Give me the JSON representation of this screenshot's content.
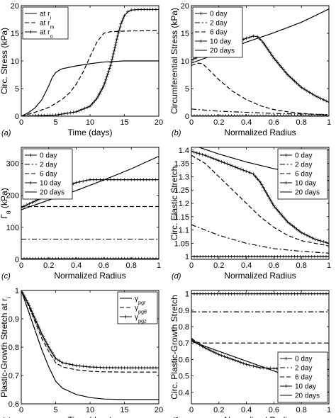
{
  "chart_data": [
    {
      "id": "a",
      "type": "line",
      "panel_label": "(a)",
      "xlabel": "Time (days)",
      "ylabel": "Circ. Stress (kPa)",
      "xlim": [
        0,
        20
      ],
      "ylim": [
        0,
        20
      ],
      "xticks": [
        0,
        5,
        10,
        15,
        20
      ],
      "yticks": [
        0,
        5,
        10,
        15,
        20
      ],
      "legend": "top-left",
      "series": [
        {
          "name": "at r_i",
          "style": "solid",
          "x": [
            0,
            1,
            2,
            3,
            4,
            4.5,
            5,
            5.5,
            6,
            8,
            10,
            12,
            15,
            20
          ],
          "y": [
            0,
            0.6,
            1.5,
            3,
            5.5,
            7,
            7.9,
            8.3,
            8.6,
            9.1,
            9.5,
            9.8,
            10,
            10
          ]
        },
        {
          "name": "at r_m",
          "style": "dashed",
          "x": [
            0,
            2,
            4,
            5,
            6,
            7,
            8,
            9,
            10,
            11,
            12,
            13,
            15,
            20
          ],
          "y": [
            0,
            0.7,
            1.6,
            2.3,
            3.1,
            4.2,
            5.8,
            8,
            10.8,
            13.4,
            15,
            15.3,
            15.4,
            15.5
          ]
        },
        {
          "name": "at r_o",
          "style": "marker-line",
          "x": [
            0,
            5,
            8,
            10,
            11,
            12,
            13,
            13.5,
            14,
            14.5,
            15,
            15.5,
            16,
            17,
            20
          ],
          "y": [
            0,
            0.2,
            0.8,
            1.8,
            3.2,
            5.5,
            9.2,
            11.8,
            14.5,
            16.7,
            18.2,
            18.9,
            19.2,
            19.3,
            19.3
          ]
        }
      ]
    },
    {
      "id": "b",
      "type": "line",
      "panel_label": "(b)",
      "xlabel": "Normalized Radius",
      "ylabel": "Circumferential Stress (kPa)",
      "xlim": [
        0,
        1
      ],
      "ylim": [
        0,
        20
      ],
      "xticks": [
        0,
        0.2,
        0.4,
        0.6,
        0.8,
        1
      ],
      "yticks": [
        0,
        5,
        10,
        15,
        20
      ],
      "legend": "top-left",
      "series": [
        {
          "name": "0 day",
          "style": "marker-line",
          "x": [
            0,
            1
          ],
          "y": [
            0.05,
            0.05
          ]
        },
        {
          "name": "2 day",
          "style": "dashdot",
          "x": [
            0,
            0.2,
            0.4,
            0.6,
            0.8,
            1
          ],
          "y": [
            1.3,
            0.9,
            0.7,
            0.5,
            0.4,
            0.3
          ]
        },
        {
          "name": "6 day",
          "style": "dashed",
          "x": [
            0,
            0.05,
            0.08,
            0.12,
            0.2,
            0.3,
            0.4,
            0.5,
            0.6,
            0.7,
            0.8,
            0.9,
            1
          ],
          "y": [
            9.2,
            9.6,
            9.5,
            8.6,
            6.6,
            4.5,
            3,
            1.9,
            1.2,
            0.8,
            0.5,
            0.35,
            0.2
          ]
        },
        {
          "name": "10 day",
          "style": "marker-line",
          "x": [
            0,
            0.1,
            0.2,
            0.3,
            0.4,
            0.45,
            0.48,
            0.52,
            0.6,
            0.7,
            0.8,
            0.9,
            1
          ],
          "y": [
            10.2,
            11.2,
            12.2,
            13.2,
            14.1,
            14.5,
            14.4,
            13.4,
            10.5,
            7.5,
            5.2,
            3.7,
            2.5
          ]
        },
        {
          "name": "20 days",
          "style": "solid",
          "x": [
            0,
            0.2,
            0.4,
            0.6,
            0.8,
            1
          ],
          "y": [
            9.6,
            11.4,
            13.4,
            15.1,
            17,
            19.4
          ]
        }
      ]
    },
    {
      "id": "c",
      "type": "line",
      "panel_label": "(c)",
      "xlabel": "Normalized Radius",
      "ylabel": "Γ_θ (kPa)",
      "xlim": [
        0,
        1
      ],
      "ylim": [
        0,
        350
      ],
      "xticks": [
        0,
        0.2,
        0.4,
        0.6,
        0.8,
        1
      ],
      "yticks": [
        0,
        100,
        200,
        300
      ],
      "legend": "top-left",
      "series": [
        {
          "name": "0 day",
          "style": "marker-line",
          "x": [
            0,
            1
          ],
          "y": [
            2,
            2
          ]
        },
        {
          "name": "2 day",
          "style": "dashdot",
          "x": [
            0,
            1
          ],
          "y": [
            63,
            63
          ]
        },
        {
          "name": "6 day",
          "style": "dashed",
          "x": [
            0,
            1
          ],
          "y": [
            165,
            165
          ]
        },
        {
          "name": "10 day",
          "style": "marker-line",
          "x": [
            0,
            0.1,
            0.2,
            0.3,
            0.4,
            0.5,
            0.6,
            0.7,
            0.8,
            1
          ],
          "y": [
            162,
            182,
            202,
            222,
            240,
            249,
            249,
            249,
            249,
            249
          ]
        },
        {
          "name": "20 days",
          "style": "solid",
          "x": [
            0,
            0.2,
            0.4,
            0.6,
            0.8,
            1
          ],
          "y": [
            155,
            185,
            215,
            248,
            283,
            322
          ]
        }
      ]
    },
    {
      "id": "d",
      "type": "line",
      "panel_label": "(d)",
      "xlabel": "Normalized Radius",
      "ylabel": "Circ. Elastic Stretch",
      "xlim": [
        0,
        1
      ],
      "ylim": [
        0.99,
        1.41
      ],
      "xticks": [
        0,
        0.2,
        0.4,
        0.6,
        0.8,
        1
      ],
      "yticks": [
        1,
        1.05,
        1.1,
        1.15,
        1.2,
        1.25,
        1.3,
        1.35,
        1.4
      ],
      "legend": "top-right",
      "series": [
        {
          "name": "0 day",
          "style": "marker-line",
          "x": [
            0,
            1
          ],
          "y": [
            1.0,
            1.0
          ]
        },
        {
          "name": "2 day",
          "style": "dashdot",
          "x": [
            0,
            0.2,
            0.4,
            0.6,
            0.8,
            1
          ],
          "y": [
            1.12,
            1.08,
            1.05,
            1.03,
            1.02,
            1.013
          ]
        },
        {
          "name": "6 day",
          "style": "dashed",
          "x": [
            0,
            0.1,
            0.2,
            0.3,
            0.4,
            0.5,
            0.6,
            0.7,
            0.8,
            1
          ],
          "y": [
            1.38,
            1.35,
            1.3,
            1.25,
            1.2,
            1.15,
            1.11,
            1.08,
            1.06,
            1.04
          ]
        },
        {
          "name": "10 day",
          "style": "marker-line",
          "x": [
            0,
            0.1,
            0.2,
            0.3,
            0.4,
            0.45,
            0.5,
            0.6,
            0.7,
            0.8,
            0.9,
            1
          ],
          "y": [
            1.395,
            1.38,
            1.36,
            1.34,
            1.32,
            1.31,
            1.28,
            1.19,
            1.13,
            1.09,
            1.065,
            1.05
          ]
        },
        {
          "name": "20 days",
          "style": "solid",
          "x": [
            0,
            0.2,
            0.4,
            0.6,
            0.8,
            1
          ],
          "y": [
            1.42,
            1.385,
            1.355,
            1.33,
            1.31,
            1.285
          ]
        }
      ]
    },
    {
      "id": "e",
      "type": "line",
      "panel_label": "(e)",
      "xlabel": "Time (days)",
      "ylabel": "Plastic-Growth Stretch at r_i",
      "xlim": [
        0,
        20
      ],
      "ylim": [
        0.6,
        1.0
      ],
      "xticks": [
        0,
        5,
        10,
        15,
        20
      ],
      "yticks": [
        0.6,
        0.7,
        0.8,
        0.9,
        1
      ],
      "legend": "top-right",
      "series": [
        {
          "name": "γ_pgr",
          "style": "solid",
          "x": [
            0,
            1,
            2,
            3,
            4,
            5,
            6,
            8,
            10,
            12,
            15,
            20
          ],
          "y": [
            1,
            0.93,
            0.86,
            0.79,
            0.73,
            0.68,
            0.655,
            0.633,
            0.622,
            0.617,
            0.615,
            0.615
          ]
        },
        {
          "name": "γ_pgθ",
          "style": "dashed",
          "x": [
            0,
            1,
            2,
            3,
            4,
            5,
            6,
            8,
            10,
            12,
            15,
            20
          ],
          "y": [
            1,
            0.95,
            0.89,
            0.83,
            0.785,
            0.745,
            0.73,
            0.72,
            0.715,
            0.713,
            0.712,
            0.712
          ]
        },
        {
          "name": "γ_pgz",
          "style": "marker-line",
          "x": [
            0,
            1,
            2,
            3,
            4,
            5,
            6,
            8,
            10,
            12,
            15,
            20
          ],
          "y": [
            1,
            0.955,
            0.9,
            0.845,
            0.8,
            0.76,
            0.745,
            0.735,
            0.73,
            0.728,
            0.727,
            0.727
          ]
        }
      ]
    },
    {
      "id": "f",
      "type": "line",
      "panel_label": "(f)",
      "xlabel": "Normalized Radius",
      "ylabel": "Circ. Plastic-Growth Stretch",
      "xlim": [
        0,
        1
      ],
      "ylim": [
        0.33,
        1.02
      ],
      "xticks": [
        0,
        0.2,
        0.4,
        0.6,
        0.8,
        1
      ],
      "yticks": [
        0.4,
        0.5,
        0.6,
        0.7,
        0.8,
        0.9,
        1
      ],
      "legend": "bottom-right",
      "series": [
        {
          "name": "0 day",
          "style": "marker-line",
          "x": [
            0,
            1
          ],
          "y": [
            1.0,
            1.0
          ]
        },
        {
          "name": "2 day",
          "style": "dashdot",
          "x": [
            0,
            1
          ],
          "y": [
            0.89,
            0.89
          ]
        },
        {
          "name": "6 day",
          "style": "dashed",
          "x": [
            0,
            0.03,
            0.06,
            0.1,
            0.2,
            0.4,
            0.6,
            0.8,
            1
          ],
          "y": [
            0.73,
            0.71,
            0.7,
            0.7,
            0.7,
            0.7,
            0.7,
            0.7,
            0.7
          ]
        },
        {
          "name": "10 day",
          "style": "marker-line",
          "x": [
            0,
            0.1,
            0.2,
            0.3,
            0.4,
            0.5,
            0.6,
            0.8,
            1
          ],
          "y": [
            0.72,
            0.67,
            0.63,
            0.6,
            0.57,
            0.55,
            0.545,
            0.54,
            0.54
          ]
        },
        {
          "name": "20 days",
          "style": "solid",
          "x": [
            0,
            0.2,
            0.4,
            0.6,
            0.8,
            1
          ],
          "y": [
            0.71,
            0.65,
            0.59,
            0.53,
            0.47,
            0.4
          ]
        }
      ]
    }
  ]
}
